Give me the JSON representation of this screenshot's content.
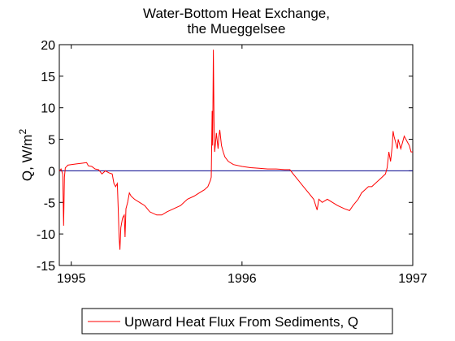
{
  "chart_data": {
    "type": "line",
    "title_line1": "Water-Bottom Heat Exchange,",
    "title_line2": "the Mueggelsee",
    "ylabel": "Q, W/m",
    "ylabel_sup": "2",
    "xlim": [
      1994.93,
      1997.0
    ],
    "ylim": [
      -15,
      20
    ],
    "x_ticks": [
      {
        "value": 1995,
        "label": "1995"
      },
      {
        "value": 1996,
        "label": "1996"
      },
      {
        "value": 1997,
        "label": "1997"
      }
    ],
    "y_ticks": [
      {
        "value": 20,
        "label": "20"
      },
      {
        "value": 15,
        "label": "15"
      },
      {
        "value": 10,
        "label": "10"
      },
      {
        "value": 5,
        "label": "5"
      },
      {
        "value": 0,
        "label": "0"
      },
      {
        "value": -5,
        "label": "-5"
      },
      {
        "value": -10,
        "label": "-10"
      },
      {
        "value": -15,
        "label": "-15"
      }
    ],
    "reference_line": {
      "y": 0,
      "color": "#00008b"
    },
    "legend_position": "bottom-outside",
    "series": [
      {
        "name": "Upward Heat Flux From Sediments, Q",
        "color": "#ff0000",
        "x": [
          1994.93,
          1994.94,
          1994.95,
          1994.955,
          1994.96,
          1994.965,
          1994.97,
          1994.98,
          1995.0,
          1995.03,
          1995.06,
          1995.09,
          1995.1,
          1995.12,
          1995.14,
          1995.16,
          1995.18,
          1995.2,
          1995.22,
          1995.24,
          1995.25,
          1995.26,
          1995.27,
          1995.275,
          1995.28,
          1995.285,
          1995.29,
          1995.3,
          1995.31,
          1995.315,
          1995.32,
          1995.33,
          1995.34,
          1995.35,
          1995.37,
          1995.4,
          1995.43,
          1995.46,
          1995.5,
          1995.53,
          1995.56,
          1995.6,
          1995.64,
          1995.68,
          1995.72,
          1995.75,
          1995.78,
          1995.8,
          1995.815,
          1995.82,
          1995.825,
          1995.828,
          1995.832,
          1995.836,
          1995.84,
          1995.845,
          1995.85,
          1995.86,
          1995.865,
          1995.87,
          1995.88,
          1995.89,
          1995.9,
          1995.92,
          1995.95,
          1996.0,
          1996.05,
          1996.1,
          1996.15,
          1996.2,
          1996.25,
          1996.28,
          1996.3,
          1996.33,
          1996.36,
          1996.39,
          1996.42,
          1996.44,
          1996.45,
          1996.47,
          1996.5,
          1996.53,
          1996.56,
          1996.6,
          1996.63,
          1996.65,
          1996.68,
          1996.7,
          1996.72,
          1996.74,
          1996.76,
          1996.78,
          1996.8,
          1996.82,
          1996.84,
          1996.85,
          1996.86,
          1996.87,
          1996.88,
          1996.885,
          1996.89,
          1996.9,
          1996.91,
          1996.915,
          1996.92,
          1996.93,
          1996.95,
          1996.97,
          1996.98,
          1996.99,
          1997.0
        ],
        "values": [
          0.0,
          0.3,
          -0.5,
          -8.7,
          -1.0,
          0.5,
          0.6,
          0.9,
          1.0,
          1.1,
          1.2,
          1.3,
          0.8,
          0.7,
          0.3,
          0.2,
          -0.5,
          0.0,
          -0.3,
          -0.5,
          -2.0,
          -2.5,
          -2.0,
          -6.0,
          -10.5,
          -12.5,
          -9.0,
          -7.5,
          -7.0,
          -10.5,
          -6.0,
          -5.0,
          -3.5,
          -4.0,
          -4.5,
          -5.0,
          -5.5,
          -6.5,
          -7.0,
          -7.0,
          -6.5,
          -6.0,
          -5.5,
          -4.5,
          -4.0,
          -3.5,
          -3.0,
          -2.5,
          -1.5,
          -1.0,
          9.5,
          4.0,
          19.2,
          8.0,
          3.0,
          4.5,
          6.0,
          3.5,
          5.5,
          6.5,
          4.0,
          3.0,
          2.2,
          1.5,
          1.0,
          0.7,
          0.5,
          0.4,
          0.3,
          0.3,
          0.2,
          0.2,
          -0.5,
          -1.5,
          -2.5,
          -3.5,
          -4.5,
          -6.2,
          -4.5,
          -5.0,
          -4.5,
          -5.0,
          -5.5,
          -6.0,
          -6.3,
          -5.5,
          -4.5,
          -3.5,
          -3.0,
          -2.5,
          -2.5,
          -2.0,
          -1.5,
          -1.0,
          -0.5,
          0.5,
          3.0,
          1.5,
          4.0,
          6.3,
          5.5,
          4.5,
          3.5,
          5.0,
          4.5,
          3.5,
          5.5,
          4.5,
          4.0,
          3.0,
          3.0
        ]
      }
    ]
  }
}
